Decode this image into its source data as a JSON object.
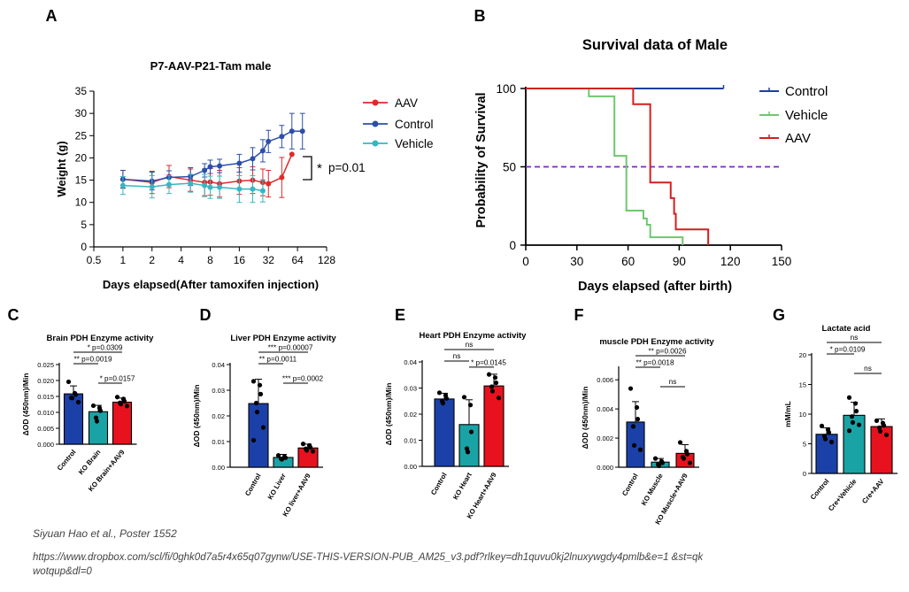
{
  "panels": {
    "A": "A",
    "B": "B",
    "C": "C",
    "D": "D",
    "E": "E",
    "F": "F",
    "G": "G"
  },
  "colors": {
    "aav": "#e02a2a",
    "control": "#2d4fa8",
    "vehicle": "#37b6c2",
    "km_control": "#1f3f9e",
    "km_vehicle": "#6fc76f",
    "km_aav": "#d41f1f",
    "dashed": "#7a2bb5",
    "bar_blue": "#1b41a8",
    "bar_teal": "#1aa3a5",
    "bar_red": "#e8121e"
  },
  "citation": "Siyuan Hao et al., Poster 1552",
  "url": "https://www.dropbox.com/scl/fi/0ghk0d7a5r4x65q07gynw/USE-THIS-VERSION-PUB_AM25_v3.pdf?rlkey=dh1quvu0kj2lnuxywgdy4pmlb&e=1 &st=qkwotqup&dl=0",
  "chart_data": [
    {
      "id": "A",
      "type": "line",
      "title": "P7-AAV-P21-Tam male",
      "xlabel": "Days elapsed(After tamoxifen injection)",
      "ylabel": "Weight (g)",
      "xscale": "log2",
      "xticks": [
        "0.5",
        "1",
        "2",
        "4",
        "8",
        "16",
        "32",
        "64",
        "128"
      ],
      "xlim": [
        0.5,
        128
      ],
      "ylim": [
        0,
        35
      ],
      "yticks": [
        "0",
        "5",
        "10",
        "15",
        "20",
        "25",
        "30",
        "35"
      ],
      "annotation": "p=0.01",
      "annotation_star": "*",
      "series": [
        {
          "name": "AAV",
          "x": [
            1,
            2,
            3,
            5,
            7,
            8,
            10,
            16,
            22,
            28,
            32,
            44,
            56
          ],
          "y": [
            15.2,
            14.5,
            15.8,
            15.0,
            14.5,
            14.6,
            14.2,
            14.8,
            15.0,
            14.5,
            14.2,
            15.6,
            20.8
          ],
          "err": [
            2,
            2.5,
            2.5,
            2.5,
            3,
            3,
            3,
            3,
            3,
            3,
            3,
            4.5,
            0
          ]
        },
        {
          "name": "Control",
          "x": [
            1,
            2,
            3,
            5,
            7,
            8,
            10,
            16,
            22,
            28,
            32,
            44,
            56,
            72
          ],
          "y": [
            15.2,
            14.8,
            15.6,
            15.8,
            17.2,
            18.0,
            18.2,
            18.8,
            19.8,
            21.6,
            23.7,
            24.8,
            26.0,
            26.0
          ],
          "err": [
            2,
            2,
            1.5,
            2,
            1.5,
            1.5,
            1.5,
            2,
            2.5,
            2.5,
            2.5,
            2.5,
            4,
            4
          ]
        },
        {
          "name": "Vehicle",
          "x": [
            1,
            2,
            3,
            5,
            7,
            8,
            10,
            16,
            22,
            28
          ],
          "y": [
            13.8,
            13.5,
            14.0,
            14.3,
            13.8,
            13.4,
            13.4,
            13.0,
            13.0,
            12.6
          ],
          "err": [
            2,
            2.5,
            2,
            2,
            2.5,
            2.5,
            2.5,
            3,
            3,
            2.5
          ]
        }
      ]
    },
    {
      "id": "B",
      "type": "line",
      "subtype": "survival",
      "title": "Survival data of Male",
      "xlabel": "Days elapsed (after birth)",
      "ylabel": "Probability of Survival",
      "xlim": [
        0,
        150
      ],
      "ylim": [
        0,
        100
      ],
      "xticks": [
        "0",
        "30",
        "60",
        "90",
        "120",
        "150"
      ],
      "yticks": [
        "0",
        "50",
        "100"
      ],
      "reference_line": 50,
      "series": [
        {
          "name": "Control",
          "steps": [
            [
              0,
              100
            ],
            [
              116,
              100
            ]
          ]
        },
        {
          "name": "Vehicle",
          "steps": [
            [
              0,
              100
            ],
            [
              37,
              100
            ],
            [
              37,
              95
            ],
            [
              52,
              95
            ],
            [
              52,
              57
            ],
            [
              59,
              57
            ],
            [
              59,
              22
            ],
            [
              69,
              22
            ],
            [
              69,
              17
            ],
            [
              71,
              17
            ],
            [
              71,
              13
            ],
            [
              73,
              13
            ],
            [
              73,
              5
            ],
            [
              92,
              5
            ],
            [
              92,
              0
            ]
          ]
        },
        {
          "name": "AAV",
          "steps": [
            [
              0,
              100
            ],
            [
              63,
              100
            ],
            [
              63,
              90
            ],
            [
              73,
              90
            ],
            [
              73,
              40
            ],
            [
              85,
              40
            ],
            [
              85,
              30
            ],
            [
              87,
              30
            ],
            [
              87,
              20
            ],
            [
              88,
              20
            ],
            [
              88,
              10
            ],
            [
              107,
              10
            ],
            [
              107,
              0
            ]
          ]
        }
      ]
    },
    {
      "id": "C",
      "type": "bar",
      "title": "Brain PDH Enzyme activity",
      "ylabel": "ΔOD (450nm)/Min",
      "ylim": [
        0,
        0.025
      ],
      "yticks": [
        "0.000",
        "0.005",
        "0.010",
        "0.015",
        "0.020",
        "0.025"
      ],
      "categories": [
        "Control",
        "KO Brain",
        "KO Brain+AAV9"
      ],
      "values": [
        0.0158,
        0.0102,
        0.0132
      ],
      "err": [
        0.0025,
        0.002,
        0.0013
      ],
      "points": [
        [
          0.0196,
          0.016,
          0.0156,
          0.0146,
          0.0145,
          0.0132
        ],
        [
          0.0121,
          0.0114,
          0.0105,
          0.0083,
          0.0072
        ],
        [
          0.0148,
          0.0142,
          0.0135,
          0.013,
          0.0126,
          0.012
        ]
      ],
      "brackets": [
        {
          "from": 0,
          "to": 2,
          "stars": "*",
          "label": "p=0.0309"
        },
        {
          "from": 0,
          "to": 1,
          "stars": "**",
          "label": "p=0.0019"
        },
        {
          "from": 1,
          "to": 2,
          "stars": "*",
          "label": "p=0.0157"
        }
      ]
    },
    {
      "id": "D",
      "type": "bar",
      "title": "Liver PDH Enzyme activity",
      "ylabel": "ΔOD (450nm)/Min",
      "ylim": [
        0,
        0.04
      ],
      "yticks": [
        "0.00",
        "0.01",
        "0.02",
        "0.03",
        "0.04"
      ],
      "categories": [
        "Control",
        "KO Liver",
        "KO liver+AAV9"
      ],
      "values": [
        0.0248,
        0.0038,
        0.0075
      ],
      "err": [
        0.0095,
        0.0012,
        0.0015
      ],
      "points": [
        [
          0.0335,
          0.032,
          0.0285,
          0.025,
          0.0215,
          0.0155,
          0.0105
        ],
        [
          0.0046,
          0.0041,
          0.0037,
          0.0033,
          0.0031
        ],
        [
          0.0091,
          0.0085,
          0.0078,
          0.0072,
          0.0066,
          0.0062
        ]
      ],
      "brackets": [
        {
          "from": 0,
          "to": 2,
          "stars": "***",
          "label": "p=0.00007"
        },
        {
          "from": 0,
          "to": 1,
          "stars": "**",
          "label": "p=0.0011"
        },
        {
          "from": 1,
          "to": 2,
          "stars": "***",
          "label": "p=0.0002"
        }
      ]
    },
    {
      "id": "E",
      "type": "bar",
      "title": "Heart PDH Enzyme activity",
      "ylabel": "ΔOD (450nm)/Min",
      "ylim": [
        0,
        0.04
      ],
      "yticks": [
        "0.00",
        "0.01",
        "0.02",
        "0.03",
        "0.04"
      ],
      "categories": [
        "Control",
        "KO Heart",
        "KO Heart+AAV9"
      ],
      "values": [
        0.0258,
        0.016,
        0.0308
      ],
      "err": [
        0.0022,
        0.0095,
        0.0045
      ],
      "points": [
        [
          0.0282,
          0.0272,
          0.026,
          0.025,
          0.0242
        ],
        [
          0.0265,
          0.0235,
          0.0132,
          0.0068,
          0.0055
        ],
        [
          0.0352,
          0.034,
          0.032,
          0.0305,
          0.0288,
          0.0262
        ]
      ],
      "brackets": [
        {
          "from": 0,
          "to": 2,
          "stars": "",
          "label": "ns"
        },
        {
          "from": 0,
          "to": 1,
          "stars": "",
          "label": "ns"
        },
        {
          "from": 1,
          "to": 2,
          "stars": "*",
          "label": "p=0.0145"
        }
      ]
    },
    {
      "id": "F",
      "type": "bar",
      "title": "muscle PDH Enzyme activity",
      "ylabel": "ΔOD (450nm)/Min",
      "ylim": [
        0,
        0.0068
      ],
      "yticks": [
        "0.000",
        "0.002",
        "0.004",
        "0.006"
      ],
      "categories": [
        "Control",
        "KO Muscle",
        "KO Muscle+AAV9"
      ],
      "values": [
        0.0031,
        0.00035,
        0.00095
      ],
      "err": [
        0.0014,
        0.00025,
        0.0006
      ],
      "points": [
        [
          0.0054,
          0.0041,
          0.0033,
          0.0028,
          0.0015,
          0.0012
        ],
        [
          0.0006,
          0.0004,
          0.0003,
          0.0002,
          0.0001
        ],
        [
          0.0017,
          0.0011,
          0.0009,
          0.0007,
          0.0006,
          0.0003
        ]
      ],
      "brackets": [
        {
          "from": 0,
          "to": 2,
          "stars": "**",
          "label": "p=0.0026"
        },
        {
          "from": 0,
          "to": 1,
          "stars": "**",
          "label": "p=0.0018"
        },
        {
          "from": 1,
          "to": 2,
          "stars": "",
          "label": "ns"
        }
      ]
    },
    {
      "id": "G",
      "type": "bar",
      "title": "Lactate acid",
      "ylabel": "mM/mL",
      "ylim": [
        0,
        20
      ],
      "yticks": [
        "0",
        "5",
        "10",
        "15",
        "20"
      ],
      "categories": [
        "Control",
        "Cre+Vehicle",
        "Cre+AAV"
      ],
      "values": [
        6.6,
        9.8,
        7.9
      ],
      "err": [
        1.1,
        2.2,
        1.3
      ],
      "points": [
        [
          8.0,
          7.4,
          6.9,
          6.3,
          5.8,
          5.3
        ],
        [
          12.8,
          11.8,
          10.5,
          9.6,
          8.6,
          8.2,
          7.2
        ],
        [
          8.9,
          8.5,
          8.1,
          7.7,
          7.1,
          6.5
        ]
      ],
      "brackets": [
        {
          "from": 0,
          "to": 2,
          "stars": "",
          "label": "ns"
        },
        {
          "from": 0,
          "to": 1,
          "stars": "*",
          "label": "p=0.0109"
        },
        {
          "from": 1,
          "to": 2,
          "stars": "",
          "label": "ns"
        }
      ]
    }
  ]
}
